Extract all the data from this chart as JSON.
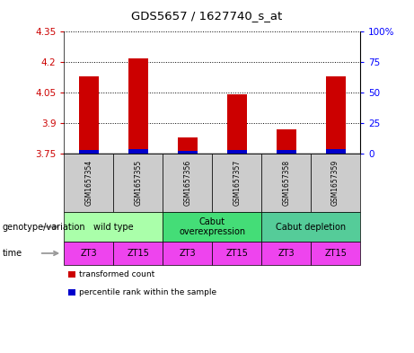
{
  "title": "GDS5657 / 1627740_s_at",
  "samples": [
    "GSM1657354",
    "GSM1657355",
    "GSM1657356",
    "GSM1657357",
    "GSM1657358",
    "GSM1657359"
  ],
  "transformed_counts": [
    4.13,
    4.22,
    3.83,
    4.04,
    3.87,
    4.13
  ],
  "percentile_ranks": [
    3,
    4,
    2,
    3,
    3,
    4
  ],
  "y_min": 3.75,
  "y_max": 4.35,
  "y_ticks": [
    3.75,
    3.9,
    4.05,
    4.2,
    4.35
  ],
  "y2_ticks": [
    0,
    25,
    50,
    75,
    100
  ],
  "y2_tick_labels": [
    "0",
    "25",
    "50",
    "75",
    "100%"
  ],
  "bar_color_red": "#cc0000",
  "bar_color_blue": "#0000cc",
  "genotype_groups": [
    {
      "label": "wild type",
      "span": [
        0,
        2
      ],
      "color": "#aaffaa"
    },
    {
      "label": "Cabut\noverexpression",
      "span": [
        2,
        4
      ],
      "color": "#44dd77"
    },
    {
      "label": "Cabut depletion",
      "span": [
        4,
        6
      ],
      "color": "#55cc99"
    }
  ],
  "time_labels": [
    "ZT3",
    "ZT15",
    "ZT3",
    "ZT15",
    "ZT3",
    "ZT15"
  ],
  "time_color": "#ee44ee",
  "sample_box_color": "#cccccc",
  "legend_red_label": "transformed count",
  "legend_blue_label": "percentile rank within the sample",
  "left_label_geno": "genotype/variation",
  "left_label_time": "time",
  "bar_width": 0.4
}
